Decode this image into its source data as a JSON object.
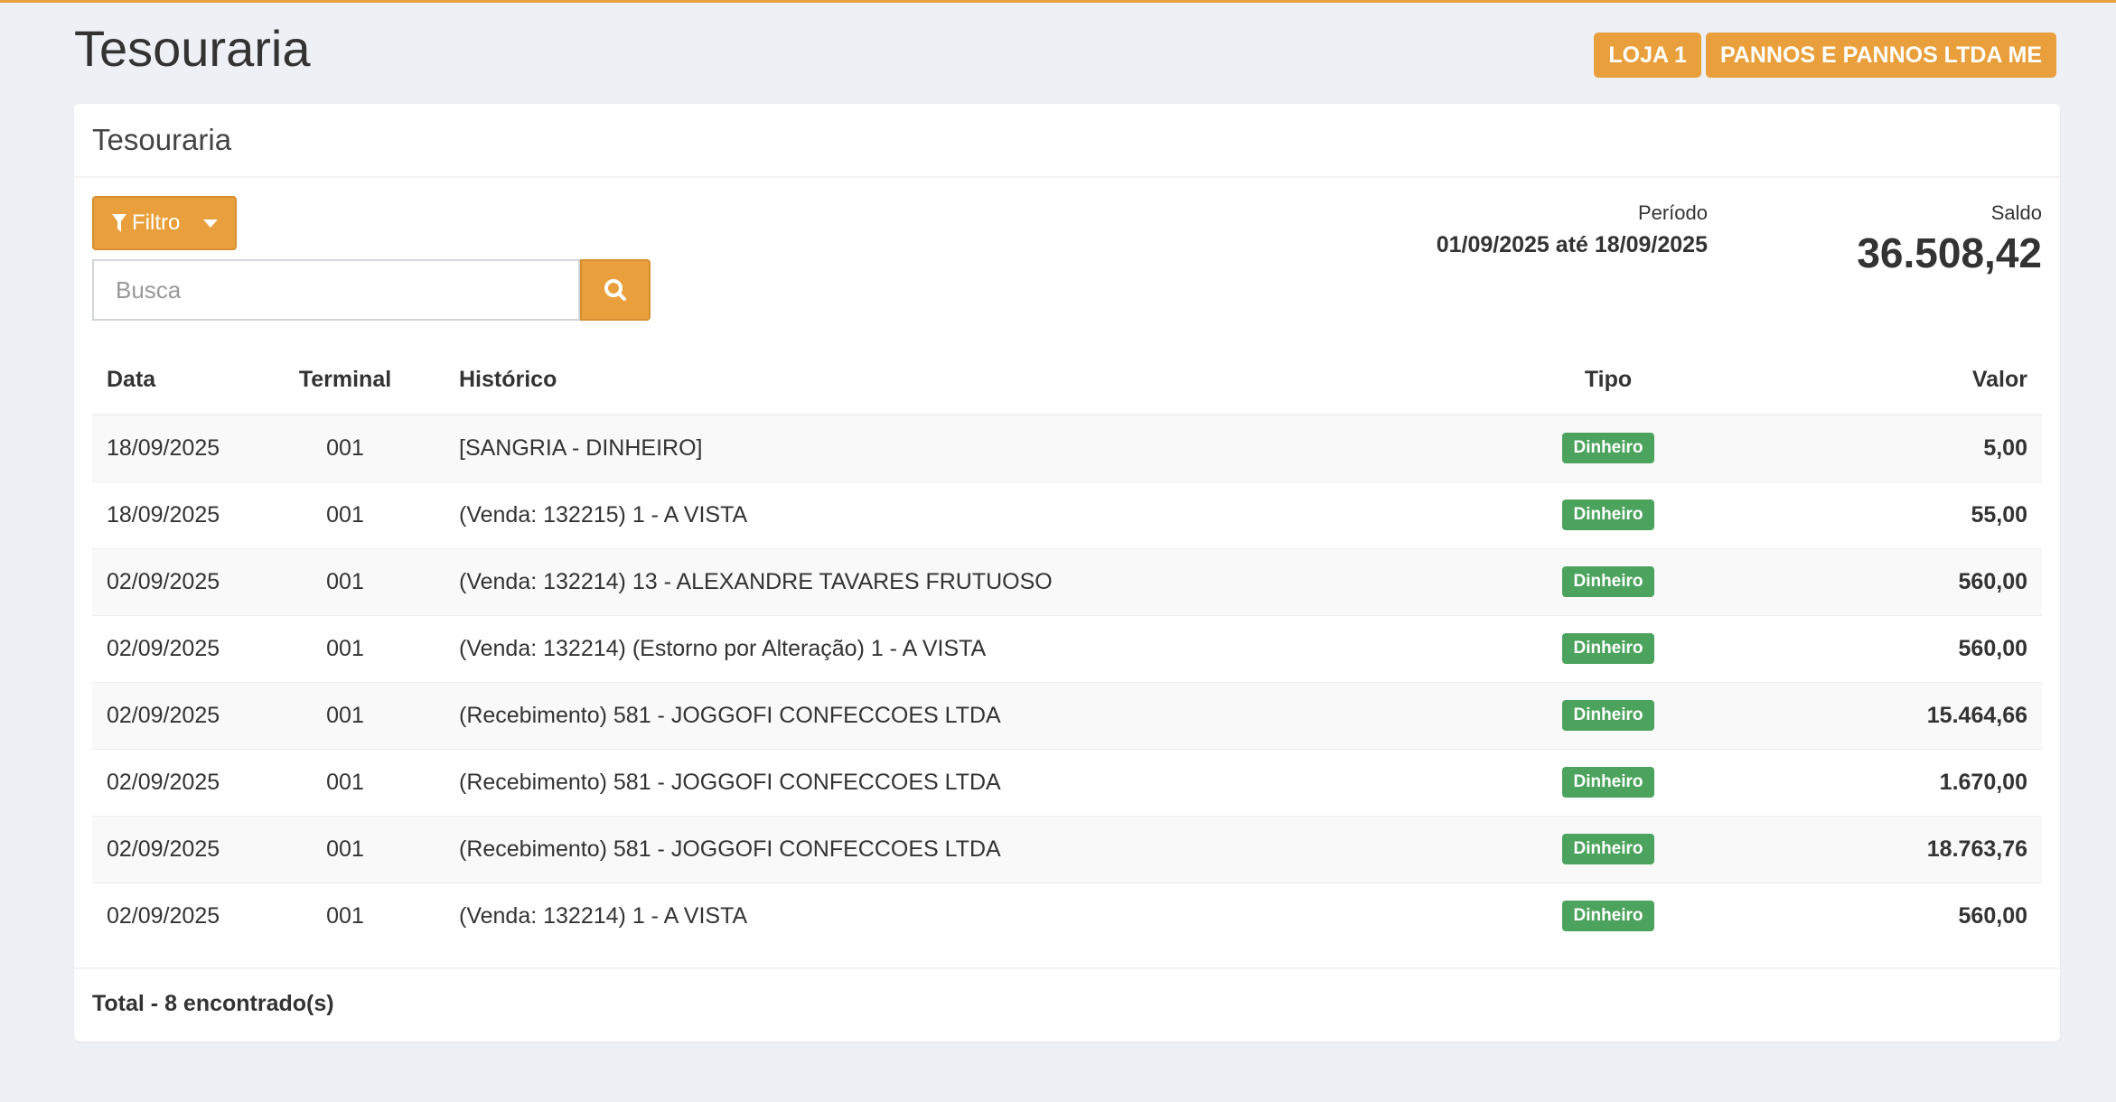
{
  "page_title": "Tesouraria",
  "tags": [
    "LOJA 1",
    "PANNOS E PANNOS LTDA ME"
  ],
  "card_title": "Tesouraria",
  "filter_label": "Filtro",
  "search": {
    "placeholder": "Busca",
    "value": ""
  },
  "periodo": {
    "label": "Período",
    "value": "01/09/2025 até 18/09/2025"
  },
  "saldo": {
    "label": "Saldo",
    "value": "36.508,42"
  },
  "table": {
    "headers": [
      "Data",
      "Terminal",
      "Histórico",
      "Tipo",
      "Valor"
    ],
    "rows": [
      {
        "data": "18/09/2025",
        "terminal": "001",
        "historico": "[SANGRIA - DINHEIRO]",
        "tipo": "Dinheiro",
        "valor": "5,00"
      },
      {
        "data": "18/09/2025",
        "terminal": "001",
        "historico": "(Venda: 132215) 1 - A VISTA",
        "tipo": "Dinheiro",
        "valor": "55,00"
      },
      {
        "data": "02/09/2025",
        "terminal": "001",
        "historico": "(Venda: 132214) 13 - ALEXANDRE TAVARES FRUTUOSO",
        "tipo": "Dinheiro",
        "valor": "560,00"
      },
      {
        "data": "02/09/2025",
        "terminal": "001",
        "historico": "(Venda: 132214) (Estorno por Alteração) 1 - A VISTA",
        "tipo": "Dinheiro",
        "valor": "560,00"
      },
      {
        "data": "02/09/2025",
        "terminal": "001",
        "historico": "(Recebimento) 581 - JOGGOFI CONFECCOES LTDA",
        "tipo": "Dinheiro",
        "valor": "15.464,66"
      },
      {
        "data": "02/09/2025",
        "terminal": "001",
        "historico": "(Recebimento) 581 - JOGGOFI CONFECCOES LTDA",
        "tipo": "Dinheiro",
        "valor": "1.670,00"
      },
      {
        "data": "02/09/2025",
        "terminal": "001",
        "historico": "(Recebimento) 581 - JOGGOFI CONFECCOES LTDA",
        "tipo": "Dinheiro",
        "valor": "18.763,76"
      },
      {
        "data": "02/09/2025",
        "terminal": "001",
        "historico": "(Venda: 132214) 1 - A VISTA",
        "tipo": "Dinheiro",
        "valor": "560,00"
      }
    ]
  },
  "footer": "Total - 8 encontrado(s)",
  "colors": {
    "accent": "#e9a03c",
    "badge": "#4ca35d",
    "background": "#edf0f5"
  }
}
